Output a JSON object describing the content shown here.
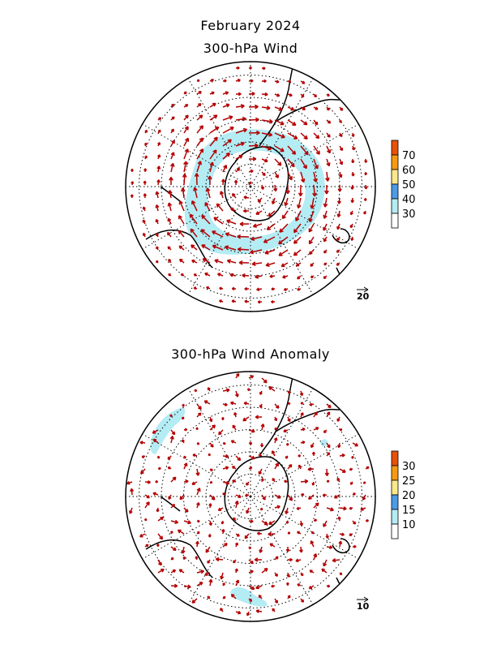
{
  "titles": {
    "main": "February 2024",
    "top_panel": "300-hPa Wind",
    "bottom_panel": "300-hPa Wind Anomaly"
  },
  "colors": {
    "vector": "#b40000",
    "coast": "#000000",
    "c_lightblue": "#b4ecf4",
    "c_blue": "#4b9be6",
    "c_yellow": "#fde88a",
    "c_orange": "#f79a12",
    "c_red": "#e8510a"
  },
  "top_panel": {
    "colorbar_labels": [
      "30",
      "40",
      "50",
      "60",
      "70"
    ],
    "reference_vector_label": "20"
  },
  "bottom_panel": {
    "colorbar_labels": [
      "10",
      "15",
      "20",
      "25",
      "30"
    ],
    "reference_vector_label": "10"
  }
}
